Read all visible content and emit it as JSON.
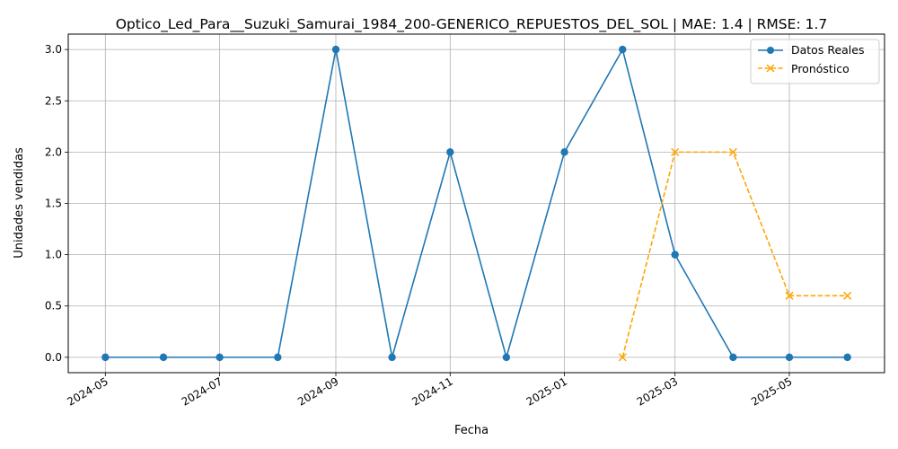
{
  "chart_data": {
    "type": "line",
    "title": "Optico_Led_Para__Suzuki_Samurai_1984_200-GENERICO_REPUESTOS_DEL_SOL | MAE: 1.4 | RMSE: 1.7",
    "xlabel": "Fecha",
    "ylabel": "Unidades vendidas",
    "x_ticks": [
      "2024-05",
      "2024-07",
      "2024-09",
      "2024-11",
      "2025-01",
      "2025-03",
      "2025-05"
    ],
    "y_ticks": [
      "0.0",
      "0.5",
      "1.0",
      "1.5",
      "2.0",
      "2.5",
      "3.0"
    ],
    "ylim": [
      -0.15,
      3.15
    ],
    "grid": true,
    "legend_position": "top-right",
    "series": [
      {
        "name": "Datos Reales",
        "color": "#1f77b4",
        "line": "solid",
        "marker": "circle",
        "x": [
          "2024-05-01",
          "2024-06-01",
          "2024-07-01",
          "2024-08-01",
          "2024-09-01",
          "2024-10-01",
          "2024-11-01",
          "2024-12-01",
          "2025-01-01",
          "2025-02-01",
          "2025-03-01",
          "2025-04-01",
          "2025-05-01",
          "2025-06-01"
        ],
        "values": [
          0,
          0,
          0,
          0,
          3,
          0,
          2,
          0,
          2,
          3,
          1,
          0,
          0,
          0
        ]
      },
      {
        "name": "Pronóstico",
        "color": "#ffa500",
        "line": "dashed",
        "marker": "x",
        "x": [
          "2025-02-01",
          "2025-03-01",
          "2025-04-01",
          "2025-05-01",
          "2025-06-01"
        ],
        "values": [
          0,
          2,
          2,
          0.6,
          0.6
        ]
      }
    ]
  }
}
